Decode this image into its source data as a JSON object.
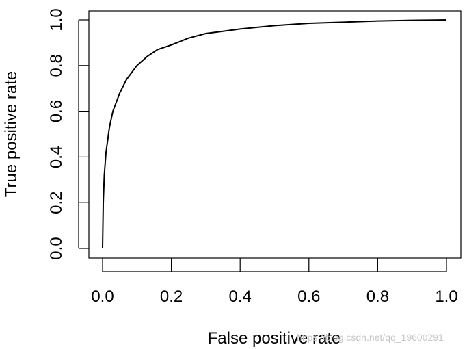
{
  "chart_data": {
    "type": "line",
    "title": "",
    "xlabel": "False positive rate",
    "ylabel": "True positive rate",
    "xlim": [
      0,
      1
    ],
    "ylim": [
      0,
      1
    ],
    "xticks": [
      0.0,
      0.2,
      0.4,
      0.6,
      0.8,
      1.0
    ],
    "xtick_labels": [
      "0.0",
      "0.2",
      "0.4",
      "0.6",
      "0.8",
      "1.0"
    ],
    "yticks": [
      0.0,
      0.2,
      0.4,
      0.6,
      0.8,
      1.0
    ],
    "ytick_labels": [
      "0.0",
      "0.2",
      "0.4",
      "0.6",
      "0.8",
      "1.0"
    ],
    "grid": false,
    "legend": "none",
    "line_color": "#000000",
    "series": [
      {
        "x": [
          0.0,
          0.002,
          0.005,
          0.01,
          0.02,
          0.03,
          0.05,
          0.07,
          0.1,
          0.13,
          0.16,
          0.2,
          0.25,
          0.3,
          0.35,
          0.4,
          0.5,
          0.6,
          0.7,
          0.8,
          0.9,
          1.0
        ],
        "y": [
          0.0,
          0.2,
          0.32,
          0.42,
          0.53,
          0.6,
          0.68,
          0.74,
          0.8,
          0.84,
          0.87,
          0.89,
          0.92,
          0.94,
          0.95,
          0.96,
          0.975,
          0.985,
          0.99,
          0.995,
          0.998,
          1.0
        ]
      }
    ]
  },
  "watermark": "https://blog.csdn.net/qq_19600291"
}
